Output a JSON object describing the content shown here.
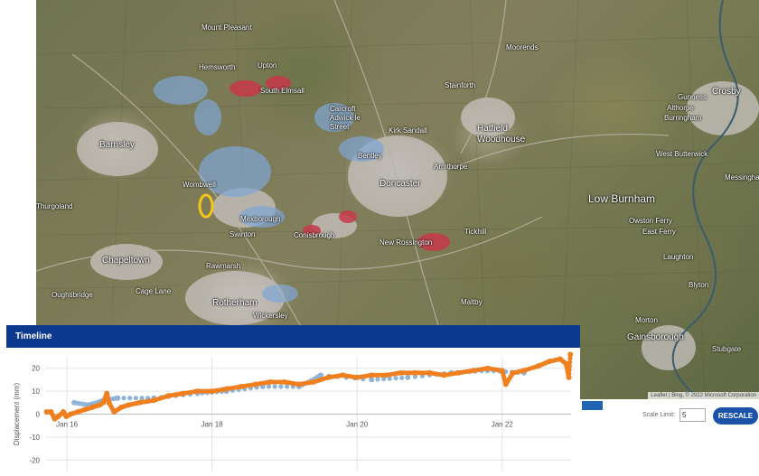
{
  "map": {
    "places": [
      {
        "name": "Mount Pleasant"
      },
      {
        "name": "Hemsworth"
      },
      {
        "name": "Upton"
      },
      {
        "name": "South Elmsall"
      },
      {
        "name": "Moorends"
      },
      {
        "name": "Stainforth"
      },
      {
        "name": "Hatfield Woodhouse"
      },
      {
        "name": "Barnsley"
      },
      {
        "name": "Carcroft Adwick le Street"
      },
      {
        "name": "Kirk Sandall"
      },
      {
        "name": "Bentley"
      },
      {
        "name": "Armthorpe"
      },
      {
        "name": "Doncaster"
      },
      {
        "name": "Wombwell"
      },
      {
        "name": "Mexborough"
      },
      {
        "name": "Swinton"
      },
      {
        "name": "Conisbrough"
      },
      {
        "name": "New Rossington"
      },
      {
        "name": "Tickhill"
      },
      {
        "name": "Chapeltown"
      },
      {
        "name": "Rawmarsh"
      },
      {
        "name": "Rotherham"
      },
      {
        "name": "Wickersley"
      },
      {
        "name": "Maltby"
      },
      {
        "name": "Low Burnham"
      },
      {
        "name": "Owston Ferry"
      },
      {
        "name": "East Ferry"
      },
      {
        "name": "Laughton"
      },
      {
        "name": "Blyton"
      },
      {
        "name": "Morton"
      },
      {
        "name": "Gainsborough"
      },
      {
        "name": "West Butterwick"
      },
      {
        "name": "Crosby"
      },
      {
        "name": "Gunness"
      },
      {
        "name": "Althorpe"
      },
      {
        "name": "Burringham"
      },
      {
        "name": "Messingham"
      },
      {
        "name": "Thurgoland"
      },
      {
        "name": "Oughtibridge"
      },
      {
        "name": "Stubgate"
      },
      {
        "name": "Cage Lane"
      }
    ],
    "attribution": "Leaflet | Bing, © 2022 Microsoft Corporation",
    "selection_marker_color": "#f5c518"
  },
  "timeline": {
    "title": "Timeline",
    "chart_data": {
      "type": "scatter",
      "title": "Timeline",
      "ylabel": "Displacement (mm)",
      "xlabel": "",
      "ylim": [
        -25,
        25
      ],
      "xlim": [
        2015.7,
        2022.95
      ],
      "x_ticks": [
        {
          "value": 2016,
          "label": "Jan 16"
        },
        {
          "value": 2018,
          "label": "Jan 18"
        },
        {
          "value": 2020,
          "label": "Jan 20"
        },
        {
          "value": 2022,
          "label": "Jan 22"
        }
      ],
      "y_ticks": [
        20,
        10,
        0,
        -10,
        -20
      ],
      "grid": true,
      "series": [
        {
          "color": "#f0801f",
          "points": [
            [
              2015.72,
              1
            ],
            [
              2015.78,
              1
            ],
            [
              2015.83,
              -2
            ],
            [
              2015.88,
              -1
            ],
            [
              2015.95,
              1
            ],
            [
              2015.99,
              -1
            ],
            [
              2016.05,
              0
            ],
            [
              2016.15,
              1
            ],
            [
              2016.25,
              2
            ],
            [
              2016.35,
              3
            ],
            [
              2016.45,
              4
            ],
            [
              2016.5,
              5
            ],
            [
              2016.55,
              9
            ],
            [
              2016.58,
              5
            ],
            [
              2016.65,
              1
            ],
            [
              2016.75,
              3
            ],
            [
              2016.85,
              4
            ],
            [
              2017.0,
              5
            ],
            [
              2017.2,
              6
            ],
            [
              2017.4,
              8
            ],
            [
              2017.6,
              9
            ],
            [
              2017.8,
              10
            ],
            [
              2018.0,
              10
            ],
            [
              2018.2,
              11
            ],
            [
              2018.4,
              12
            ],
            [
              2018.6,
              13
            ],
            [
              2018.8,
              14
            ],
            [
              2019.0,
              14
            ],
            [
              2019.2,
              13
            ],
            [
              2019.4,
              14
            ],
            [
              2019.6,
              16
            ],
            [
              2019.8,
              17
            ],
            [
              2020.0,
              16
            ],
            [
              2020.2,
              17
            ],
            [
              2020.4,
              17
            ],
            [
              2020.6,
              18
            ],
            [
              2020.8,
              18
            ],
            [
              2021.0,
              18
            ],
            [
              2021.2,
              17
            ],
            [
              2021.4,
              18
            ],
            [
              2021.6,
              19
            ],
            [
              2021.8,
              20
            ],
            [
              2022.0,
              19
            ],
            [
              2022.05,
              13
            ],
            [
              2022.15,
              18
            ],
            [
              2022.3,
              19
            ],
            [
              2022.5,
              21
            ],
            [
              2022.65,
              23
            ],
            [
              2022.8,
              24
            ],
            [
              2022.88,
              22
            ],
            [
              2022.92,
              16
            ],
            [
              2022.94,
              26
            ]
          ]
        },
        {
          "color": "#8fb4d9",
          "points": [
            [
              2016.1,
              5
            ],
            [
              2016.3,
              4
            ],
            [
              2016.5,
              6
            ],
            [
              2016.7,
              7
            ],
            [
              2017.2,
              7
            ],
            [
              2017.8,
              9
            ],
            [
              2018.2,
              10
            ],
            [
              2018.7,
              12
            ],
            [
              2019.2,
              12
            ],
            [
              2019.45,
              16
            ],
            [
              2019.5,
              17
            ],
            [
              2020.2,
              15
            ],
            [
              2020.7,
              16
            ],
            [
              2021.3,
              18
            ],
            [
              2021.8,
              19
            ],
            [
              2022.3,
              18
            ]
          ]
        }
      ]
    }
  },
  "legend_color": "#1f63b3",
  "scale": {
    "label": "Scale Limit:",
    "value": "5",
    "button_label": "RESCALE"
  }
}
